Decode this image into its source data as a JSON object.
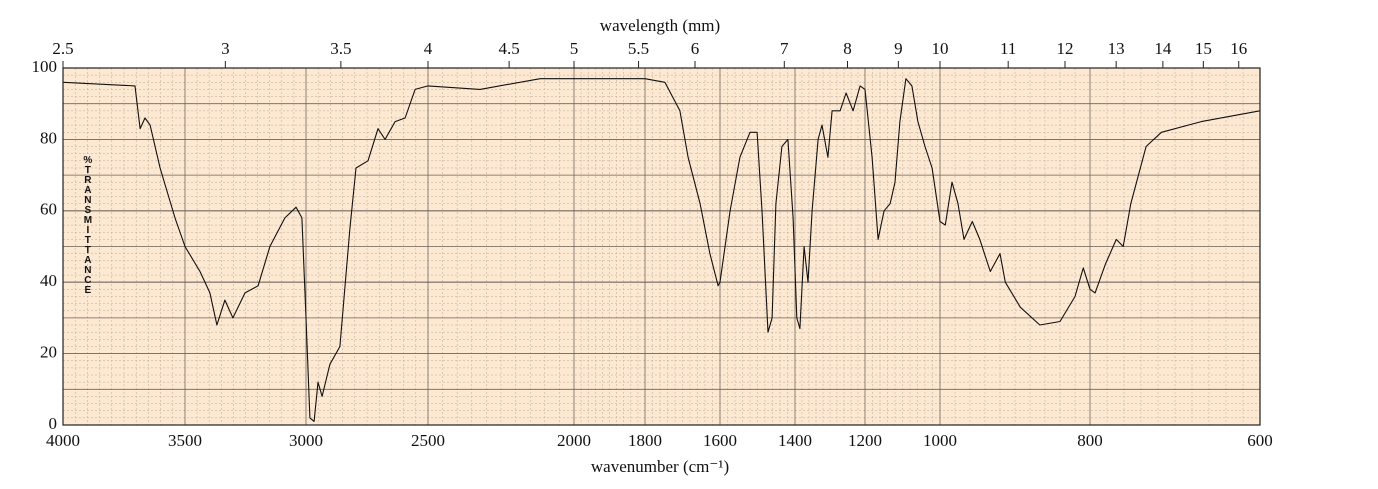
{
  "chart_data": {
    "type": "line",
    "x_title": "wavenumber (cm⁻¹)",
    "x2_title": "wavelength (mm)",
    "y_title": "%TRANSMITTANCE",
    "xlim": [
      4000,
      600
    ],
    "xticks": [
      4000,
      3500,
      3000,
      2500,
      2000,
      1800,
      1600,
      1400,
      1200,
      1000,
      800,
      600
    ],
    "x2ticks": [
      2.5,
      3,
      3.5,
      4,
      4.5,
      5,
      5.5,
      6,
      7,
      8,
      9,
      10,
      11,
      12,
      13,
      14,
      15,
      16
    ],
    "ylim": [
      0,
      100
    ],
    "yticks": [
      0,
      20,
      40,
      60,
      80,
      100
    ],
    "grid": true,
    "series": [
      {
        "name": "spectrum",
        "color": "#111111",
        "x": [
          4000,
          3705,
          3684,
          3664,
          3643,
          3602,
          3541,
          3500,
          3438,
          3397,
          3368,
          3335,
          3302,
          3252,
          3198,
          3149,
          3087,
          3041,
          3017,
          3000,
          2984,
          2967,
          2951,
          2934,
          2902,
          2861,
          2820,
          2795,
          2746,
          2705,
          2676,
          2635,
          2594,
          2553,
          2500,
          2322,
          2116,
          2000,
          1800,
          1747,
          1707,
          1685,
          1653,
          1627,
          1605,
          1600,
          1573,
          1547,
          1520,
          1501,
          1488,
          1472,
          1461,
          1451,
          1435,
          1419,
          1405,
          1395,
          1386,
          1374,
          1363,
          1351,
          1334,
          1323,
          1306,
          1294,
          1271,
          1254,
          1234,
          1214,
          1200,
          1181,
          1165,
          1149,
          1133,
          1120,
          1107,
          1091,
          1075,
          1059,
          1040,
          1021,
          1000,
          993,
          984,
          976,
          968,
          957,
          947,
          933,
          920,
          913,
          893,
          867,
          840,
          820,
          809,
          800,
          794,
          782,
          769,
          761,
          752,
          734,
          716,
          669,
          600
        ],
        "values": [
          96,
          95,
          83,
          86,
          84,
          72,
          58,
          50,
          43,
          37,
          28,
          35,
          30,
          37,
          39,
          50,
          58,
          61,
          58,
          30,
          2,
          1,
          12,
          8,
          17,
          22,
          55,
          72,
          74,
          83,
          80,
          85,
          86,
          94,
          95,
          94,
          97,
          97,
          97,
          96,
          88,
          75,
          62,
          48,
          39,
          40,
          60,
          75,
          82,
          82,
          60,
          26,
          30,
          62,
          78,
          80,
          58,
          30,
          27,
          50,
          40,
          60,
          80,
          84,
          75,
          88,
          88,
          93,
          88,
          95,
          94,
          75,
          52,
          60,
          62,
          68,
          85,
          97,
          95,
          85,
          78,
          72,
          57,
          56,
          68,
          62,
          52,
          57,
          52,
          43,
          48,
          40,
          33,
          28,
          29,
          36,
          44,
          38,
          37,
          45,
          52,
          50,
          62,
          78,
          82,
          85,
          88
        ]
      }
    ]
  }
}
